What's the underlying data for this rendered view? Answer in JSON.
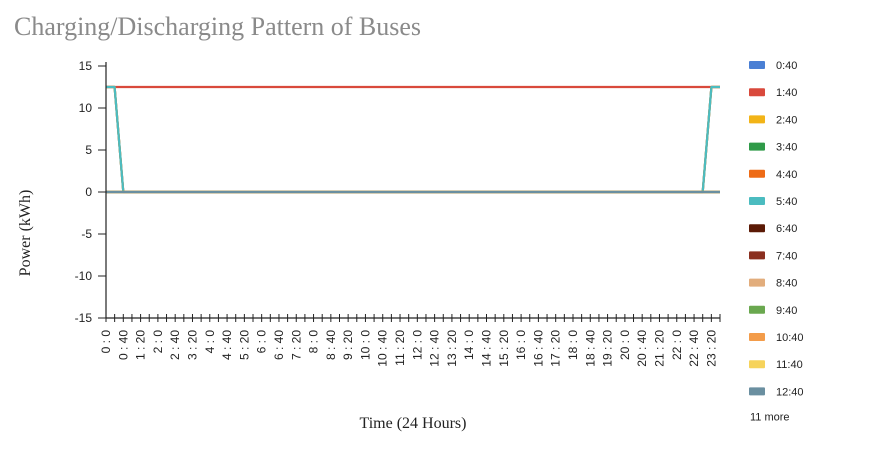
{
  "chart_data": {
    "type": "line",
    "title": "Charging/Discharging Pattern of Buses",
    "xlabel": "Time (24 Hours)",
    "ylabel": "Power (kWh)",
    "ylim": [
      -15,
      15
    ],
    "yticks": [
      "15",
      "10",
      "5",
      "0",
      "-5",
      "-10",
      "-15"
    ],
    "xticks": [
      "0 : 0",
      "0 : 40",
      "1 : 20",
      "2 : 0",
      "2 : 40",
      "3 : 20",
      "4 : 0",
      "4 : 40",
      "5 : 20",
      "6 : 0",
      "6 : 40",
      "7 : 20",
      "8 : 0",
      "8 : 40",
      "9 : 20",
      "10 : 0",
      "10 : 40",
      "11 : 20",
      "12 : 0",
      "12 : 40",
      "13 : 20",
      "14 : 0",
      "14 : 40",
      "15 : 20",
      "16 : 0",
      "16 : 40",
      "17 : 20",
      "18 : 0",
      "18 : 40",
      "19 : 20",
      "20 : 0",
      "20 : 40",
      "21 : 20",
      "22 : 0",
      "22 : 40",
      "23 : 20"
    ],
    "x": [
      "0:00",
      "0:20",
      "0:40",
      "1:00",
      "1:20",
      "1:40",
      "2:00",
      "2:20",
      "2:40",
      "3:00",
      "3:20",
      "3:40",
      "4:00",
      "4:20",
      "4:40",
      "5:00",
      "5:20",
      "5:40",
      "6:00",
      "6:20",
      "6:40",
      "7:00",
      "7:20",
      "7:40",
      "8:00",
      "8:20",
      "8:40",
      "9:00",
      "9:20",
      "9:40",
      "10:00",
      "10:20",
      "10:40",
      "11:00",
      "11:20",
      "11:40",
      "12:00",
      "12:20",
      "12:40",
      "13:00",
      "13:20",
      "13:40",
      "14:00",
      "14:20",
      "14:40",
      "15:00",
      "15:20",
      "15:40",
      "16:00",
      "16:20",
      "16:40",
      "17:00",
      "17:20",
      "17:40",
      "18:00",
      "18:20",
      "18:40",
      "19:00",
      "19:20",
      "19:40",
      "20:00",
      "20:20",
      "20:40",
      "21:00",
      "21:20",
      "21:40",
      "22:00",
      "22:20",
      "22:40",
      "23:00",
      "23:20",
      "23:40"
    ],
    "grid": false,
    "legend_position": "right",
    "legend_more": "11 more",
    "series": [
      {
        "name": "0:40",
        "color": "#4a7fd4",
        "values": [
          12.5,
          12.5,
          0,
          0,
          0,
          0,
          0,
          0,
          0,
          0,
          0,
          0,
          0,
          0,
          0,
          0,
          0,
          0,
          0,
          0,
          0,
          0,
          0,
          0,
          0,
          0,
          0,
          0,
          0,
          0,
          0,
          0,
          0,
          0,
          0,
          0,
          0,
          0,
          0,
          0,
          0,
          0,
          0,
          0,
          0,
          0,
          0,
          0,
          0,
          0,
          0,
          0,
          0,
          0,
          0,
          0,
          0,
          0,
          0,
          0,
          0,
          0,
          0,
          0,
          0,
          0,
          0,
          0,
          0,
          0,
          12.5,
          12.5
        ]
      },
      {
        "name": "1:40",
        "color": "#d9493c",
        "values": [
          12.5,
          12.5,
          12.5,
          12.5,
          12.5,
          12.5,
          12.5,
          12.5,
          12.5,
          12.5,
          12.5,
          12.5,
          12.5,
          12.5,
          12.5,
          12.5,
          12.5,
          12.5,
          12.5,
          12.5,
          12.5,
          12.5,
          12.5,
          12.5,
          12.5,
          12.5,
          12.5,
          12.5,
          12.5,
          12.5,
          12.5,
          12.5,
          12.5,
          12.5,
          12.5,
          12.5,
          12.5,
          12.5,
          12.5,
          12.5,
          12.5,
          12.5,
          12.5,
          12.5,
          12.5,
          12.5,
          12.5,
          12.5,
          12.5,
          12.5,
          12.5,
          12.5,
          12.5,
          12.5,
          12.5,
          12.5,
          12.5,
          12.5,
          12.5,
          12.5,
          12.5,
          12.5,
          12.5,
          12.5,
          12.5,
          12.5,
          12.5,
          12.5,
          12.5,
          12.5,
          12.5,
          12.5
        ]
      },
      {
        "name": "2:40",
        "color": "#f2b417",
        "values": [
          12.5,
          12.5,
          0,
          0,
          0,
          0,
          0,
          0,
          0,
          0,
          0,
          0,
          0,
          0,
          0,
          0,
          0,
          0,
          0,
          0,
          0,
          0,
          0,
          0,
          0,
          0,
          0,
          0,
          0,
          0,
          0,
          0,
          0,
          0,
          0,
          0,
          0,
          0,
          0,
          0,
          0,
          0,
          0,
          0,
          0,
          0,
          0,
          0,
          0,
          0,
          0,
          0,
          0,
          0,
          0,
          0,
          0,
          0,
          0,
          0,
          0,
          0,
          0,
          0,
          0,
          0,
          0,
          0,
          0,
          0,
          12.5,
          12.5
        ]
      },
      {
        "name": "3:40",
        "color": "#2f9a48",
        "values": [
          0,
          0,
          0,
          0,
          0,
          0,
          0,
          0,
          0,
          0,
          0,
          0,
          0,
          0,
          0,
          0,
          0,
          0,
          0,
          0,
          0,
          0,
          0,
          0,
          0,
          0,
          0,
          0,
          0,
          0,
          0,
          0,
          0,
          0,
          0,
          0,
          0,
          0,
          0,
          0,
          0,
          0,
          0,
          0,
          0,
          0,
          0,
          0,
          0,
          0,
          0,
          0,
          0,
          0,
          0,
          0,
          0,
          0,
          0,
          0,
          0,
          0,
          0,
          0,
          0,
          0,
          0,
          0,
          0,
          0,
          0,
          0
        ]
      },
      {
        "name": "4:40",
        "color": "#ee6b16",
        "values": [
          12.5,
          12.5,
          0,
          0,
          0,
          0,
          0,
          0,
          0,
          0,
          0,
          0,
          0,
          0,
          0,
          0,
          0,
          0,
          0,
          0,
          0,
          0,
          0,
          0,
          0,
          0,
          0,
          0,
          0,
          0,
          0,
          0,
          0,
          0,
          0,
          0,
          0,
          0,
          0,
          0,
          0,
          0,
          0,
          0,
          0,
          0,
          0,
          0,
          0,
          0,
          0,
          0,
          0,
          0,
          0,
          0,
          0,
          0,
          0,
          0,
          0,
          0,
          0,
          0,
          0,
          0,
          0,
          0,
          0,
          0,
          12.5,
          12.5
        ]
      },
      {
        "name": "5:40",
        "color": "#4bbcc0",
        "values": [
          12.5,
          12.5,
          0,
          0,
          0,
          0,
          0,
          0,
          0,
          0,
          0,
          0,
          0,
          0,
          0,
          0,
          0,
          0,
          0,
          0,
          0,
          0,
          0,
          0,
          0,
          0,
          0,
          0,
          0,
          0,
          0,
          0,
          0,
          0,
          0,
          0,
          0,
          0,
          0,
          0,
          0,
          0,
          0,
          0,
          0,
          0,
          0,
          0,
          0,
          0,
          0,
          0,
          0,
          0,
          0,
          0,
          0,
          0,
          0,
          0,
          0,
          0,
          0,
          0,
          0,
          0,
          0,
          0,
          0,
          0,
          12.5,
          12.5
        ]
      },
      {
        "name": "6:40",
        "color": "#5b1a06",
        "values": [
          0,
          0,
          0,
          0,
          0,
          0,
          0,
          0,
          0,
          0,
          0,
          0,
          0,
          0,
          0,
          0,
          0,
          0,
          0,
          0,
          0,
          0,
          0,
          0,
          0,
          0,
          0,
          0,
          0,
          0,
          0,
          0,
          0,
          0,
          0,
          0,
          0,
          0,
          0,
          0,
          0,
          0,
          0,
          0,
          0,
          0,
          0,
          0,
          0,
          0,
          0,
          0,
          0,
          0,
          0,
          0,
          0,
          0,
          0,
          0,
          0,
          0,
          0,
          0,
          0,
          0,
          0,
          0,
          0,
          0,
          0,
          0
        ]
      },
      {
        "name": "7:40",
        "color": "#8a2f1f",
        "values": [
          0,
          0,
          0,
          0,
          0,
          0,
          0,
          0,
          0,
          0,
          0,
          0,
          0,
          0,
          0,
          0,
          0,
          0,
          0,
          0,
          0,
          0,
          0,
          0,
          0,
          0,
          0,
          0,
          0,
          0,
          0,
          0,
          0,
          0,
          0,
          0,
          0,
          0,
          0,
          0,
          0,
          0,
          0,
          0,
          0,
          0,
          0,
          0,
          0,
          0,
          0,
          0,
          0,
          0,
          0,
          0,
          0,
          0,
          0,
          0,
          0,
          0,
          0,
          0,
          0,
          0,
          0,
          0,
          0,
          0,
          0,
          0
        ]
      },
      {
        "name": "8:40",
        "color": "#e2ad7c",
        "values": [
          0,
          0,
          0,
          0,
          0,
          0,
          0,
          0,
          0,
          0,
          0,
          0,
          0,
          0,
          0,
          0,
          0,
          0,
          0,
          0,
          0,
          0,
          0,
          0,
          0,
          0,
          0,
          0,
          0,
          0,
          0,
          0,
          0,
          0,
          0,
          0,
          0,
          0,
          0,
          0,
          0,
          0,
          0,
          0,
          0,
          0,
          0,
          0,
          0,
          0,
          0,
          0,
          0,
          0,
          0,
          0,
          0,
          0,
          0,
          0,
          0,
          0,
          0,
          0,
          0,
          0,
          0,
          0,
          0,
          0,
          0,
          0
        ]
      },
      {
        "name": "9:40",
        "color": "#6aa84f",
        "values": [
          0,
          0,
          0,
          0,
          0,
          0,
          0,
          0,
          0,
          0,
          0,
          0,
          0,
          0,
          0,
          0,
          0,
          0,
          0,
          0,
          0,
          0,
          0,
          0,
          0,
          0,
          0,
          0,
          0,
          0,
          0,
          0,
          0,
          0,
          0,
          0,
          0,
          0,
          0,
          0,
          0,
          0,
          0,
          0,
          0,
          0,
          0,
          0,
          0,
          0,
          0,
          0,
          0,
          0,
          0,
          0,
          0,
          0,
          0,
          0,
          0,
          0,
          0,
          0,
          0,
          0,
          0,
          0,
          0,
          0,
          0,
          0
        ]
      },
      {
        "name": "10:40",
        "color": "#f39c4a",
        "values": [
          0,
          0,
          0,
          0,
          0,
          0,
          0,
          0,
          0,
          0,
          0,
          0,
          0,
          0,
          0,
          0,
          0,
          0,
          0,
          0,
          0,
          0,
          0,
          0,
          0,
          0,
          0,
          0,
          0,
          0,
          0,
          0,
          0,
          0,
          0,
          0,
          0,
          0,
          0,
          0,
          0,
          0,
          0,
          0,
          0,
          0,
          0,
          0,
          0,
          0,
          0,
          0,
          0,
          0,
          0,
          0,
          0,
          0,
          0,
          0,
          0,
          0,
          0,
          0,
          0,
          0,
          0,
          0,
          0,
          0,
          0,
          0
        ]
      },
      {
        "name": "11:40",
        "color": "#f6d35b",
        "values": [
          0,
          0,
          0,
          0,
          0,
          0,
          0,
          0,
          0,
          0,
          0,
          0,
          0,
          0,
          0,
          0,
          0,
          0,
          0,
          0,
          0,
          0,
          0,
          0,
          0,
          0,
          0,
          0,
          0,
          0,
          0,
          0,
          0,
          0,
          0,
          0,
          0,
          0,
          0,
          0,
          0,
          0,
          0,
          0,
          0,
          0,
          0,
          0,
          0,
          0,
          0,
          0,
          0,
          0,
          0,
          0,
          0,
          0,
          0,
          0,
          0,
          0,
          0,
          0,
          0,
          0,
          0,
          0,
          0,
          0,
          0,
          0
        ]
      },
      {
        "name": "12:40",
        "color": "#6a8fa0",
        "values": [
          0,
          0,
          0,
          0,
          0,
          0,
          0,
          0,
          0,
          0,
          0,
          0,
          0,
          0,
          0,
          0,
          0,
          0,
          0,
          0,
          0,
          0,
          0,
          0,
          0,
          0,
          0,
          0,
          0,
          0,
          0,
          0,
          0,
          0,
          0,
          0,
          0,
          0,
          0,
          0,
          0,
          0,
          0,
          0,
          0,
          0,
          0,
          0,
          0,
          0,
          0,
          0,
          0,
          0,
          0,
          0,
          0,
          0,
          0,
          0,
          0,
          0,
          0,
          0,
          0,
          0,
          0,
          0,
          0,
          0,
          0,
          0
        ]
      }
    ]
  }
}
